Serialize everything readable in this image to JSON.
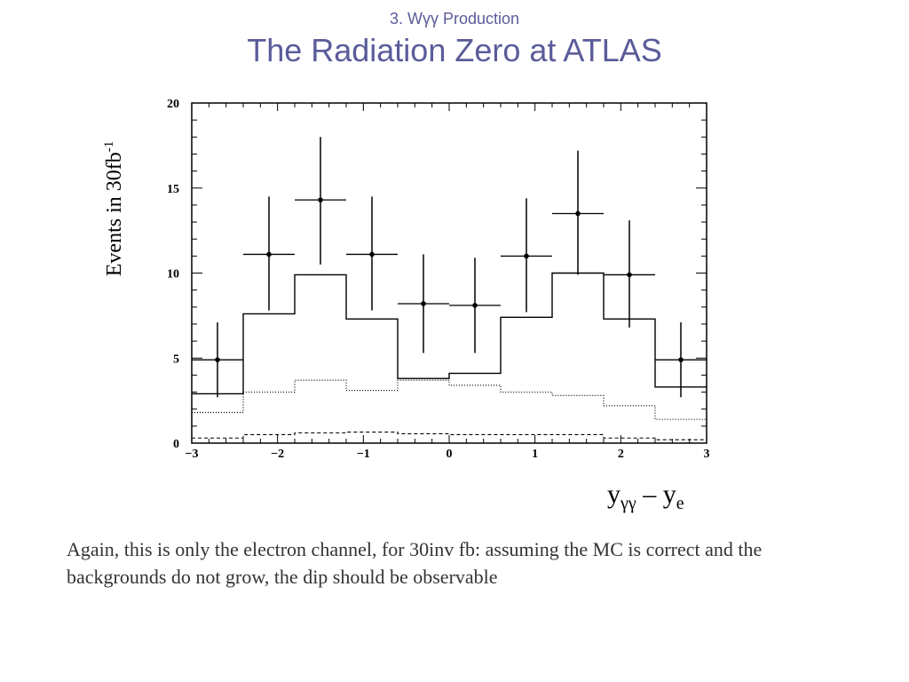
{
  "slide": {
    "subtitle": "3. Wγγ Production",
    "title": "The Radiation Zero at ATLAS",
    "note": "Again, this is only the electron channel, for 30inv fb: assuming the MC is correct and the backgrounds do not grow, the dip should be observable"
  },
  "chart_data": {
    "type": "line",
    "title": "",
    "ylabel_text": "Events in 30fb",
    "ylabel_sup": "-1",
    "xlabel_main": "y",
    "xlabel_sub1": "γγ",
    "xlabel_mid": " – y",
    "xlabel_sub2": "e",
    "xlim": [
      -3,
      3
    ],
    "ylim": [
      0,
      20
    ],
    "xticks": [
      -3,
      -2,
      -1,
      0,
      1,
      2,
      3
    ],
    "yticks": [
      0,
      5,
      10,
      15,
      20
    ],
    "bin_edges": [
      -3,
      -2.4,
      -1.8,
      -1.2,
      -0.6,
      0,
      0.6,
      1.2,
      1.8,
      2.4,
      3
    ],
    "series": [
      {
        "style": "solid-histogram",
        "values": [
          2.9,
          7.6,
          9.9,
          7.3,
          3.8,
          4.1,
          7.4,
          10.0,
          7.3,
          3.3
        ]
      },
      {
        "style": "dotted-histogram",
        "values": [
          1.8,
          3.0,
          3.7,
          3.1,
          3.7,
          3.4,
          3.0,
          2.8,
          2.2,
          1.4
        ]
      },
      {
        "style": "dashed-histogram",
        "values": [
          0.3,
          0.5,
          0.6,
          0.65,
          0.55,
          0.5,
          0.5,
          0.5,
          0.3,
          0.2
        ]
      },
      {
        "style": "points-with-errors",
        "x": [
          -2.7,
          -2.1,
          -1.5,
          -0.9,
          -0.3,
          0.3,
          0.9,
          1.5,
          2.1,
          2.7
        ],
        "y": [
          4.9,
          11.1,
          14.3,
          11.1,
          8.2,
          8.1,
          11.0,
          13.5,
          9.9,
          4.9
        ],
        "yerr_low": [
          2.2,
          3.3,
          3.8,
          3.3,
          2.9,
          2.8,
          3.3,
          3.6,
          3.1,
          2.2
        ],
        "yerr_high": [
          2.2,
          3.4,
          3.7,
          3.4,
          2.9,
          2.8,
          3.4,
          3.7,
          3.2,
          2.2
        ]
      }
    ]
  }
}
